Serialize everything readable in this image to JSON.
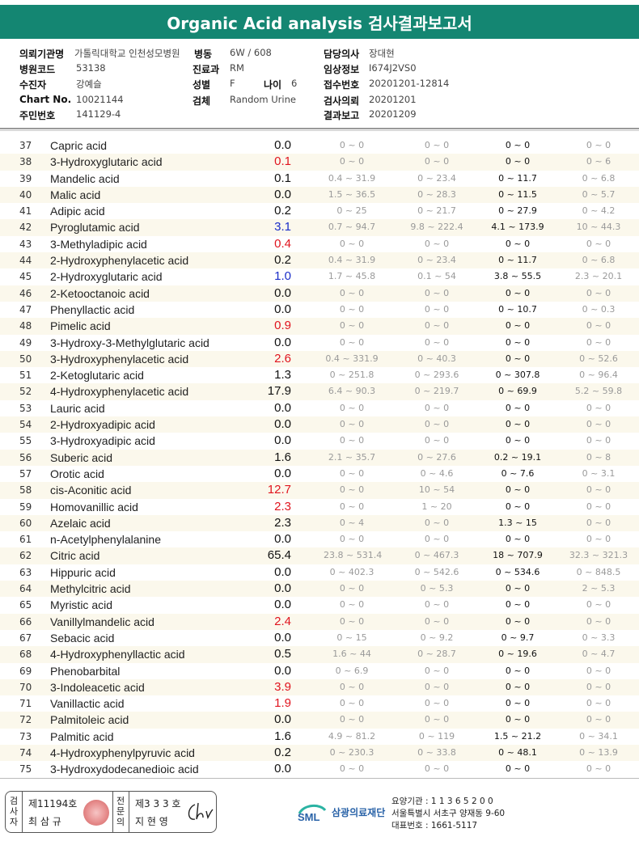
{
  "title": "Organic Acid analysis 검사결과보고서",
  "info": {
    "institution_label": "의뢰기관명",
    "institution": "가톨릭대학교 인천성모병원",
    "ward_label": "병동",
    "ward": "6W / 608",
    "doctor_label": "담당의사",
    "doctor": "장대현",
    "hospital_code_label": "병원코드",
    "hospital_code": "53138",
    "dept_label": "진료과",
    "dept": "RM",
    "clinical_label": "임상정보",
    "clinical": "I674J2VS0",
    "patient_label": "수진자",
    "patient": "강예슬",
    "sex_label": "성별",
    "sex": "F",
    "age_label": "나이",
    "age": "6",
    "receipt_label": "접수번호",
    "receipt": "20201201-12814",
    "chart_label": "Chart No.",
    "chart": "10021144",
    "specimen_label": "검체",
    "specimen": "Random Urine",
    "request_label": "검사의뢰",
    "request": "20201201",
    "resident_label": "주민번호",
    "resident": "141129-4",
    "report_label": "결과보고",
    "report": "20201209"
  },
  "rows": [
    {
      "no": "37",
      "name": "Capric acid",
      "val": "0.0",
      "color": "",
      "r1": "0 ~ 0",
      "r2": "0 ~ 0",
      "r3": "0 ~ 0",
      "r4": "0 ~ 0"
    },
    {
      "no": "38",
      "name": "3-Hydroxyglutaric acid",
      "val": "0.1",
      "color": "red",
      "r1": "0 ~ 0",
      "r2": "0 ~ 0",
      "r3": "0 ~ 0",
      "r4": "0 ~ 6"
    },
    {
      "no": "39",
      "name": "Mandelic acid",
      "val": "0.1",
      "color": "",
      "r1": "0.4 ~ 31.9",
      "r2": "0 ~ 23.4",
      "r3": "0 ~ 11.7",
      "r4": "0 ~ 6.8"
    },
    {
      "no": "40",
      "name": "Malic acid",
      "val": "0.0",
      "color": "",
      "r1": "1.5 ~ 36.5",
      "r2": "0 ~ 28.3",
      "r3": "0 ~ 11.5",
      "r4": "0 ~ 5.7"
    },
    {
      "no": "41",
      "name": "Adipic acid",
      "val": "0.2",
      "color": "",
      "r1": "0 ~ 25",
      "r2": "0 ~ 21.7",
      "r3": "0 ~ 27.9",
      "r4": "0 ~ 4.2"
    },
    {
      "no": "42",
      "name": "Pyroglutamic acid",
      "val": "3.1",
      "color": "blue",
      "r1": "0.7 ~ 94.7",
      "r2": "9.8 ~ 222.4",
      "r3": "4.1 ~ 173.9",
      "r4": "10 ~ 44.3"
    },
    {
      "no": "43",
      "name": "3-Methyladipic acid",
      "val": "0.4",
      "color": "red",
      "r1": "0 ~ 0",
      "r2": "0 ~ 0",
      "r3": "0 ~ 0",
      "r4": "0 ~ 0"
    },
    {
      "no": "44",
      "name": "2-Hydroxyphenylacetic acid",
      "val": "0.2",
      "color": "",
      "r1": "0.4 ~ 31.9",
      "r2": "0 ~ 23.4",
      "r3": "0 ~ 11.7",
      "r4": "0 ~ 6.8"
    },
    {
      "no": "45",
      "name": "2-Hydroxyglutaric acid",
      "val": "1.0",
      "color": "blue",
      "r1": "1.7 ~ 45.8",
      "r2": "0.1 ~ 54",
      "r3": "3.8 ~ 55.5",
      "r4": "2.3 ~ 20.1"
    },
    {
      "no": "46",
      "name": "2-Ketooctanoic acid",
      "val": "0.0",
      "color": "",
      "r1": "0 ~ 0",
      "r2": "0 ~ 0",
      "r3": "0 ~ 0",
      "r4": "0 ~ 0"
    },
    {
      "no": "47",
      "name": "Phenyllactic acid",
      "val": "0.0",
      "color": "",
      "r1": "0 ~ 0",
      "r2": "0 ~ 0",
      "r3": "0 ~ 10.7",
      "r4": "0 ~ 0.3"
    },
    {
      "no": "48",
      "name": "Pimelic acid",
      "val": "0.9",
      "color": "red",
      "r1": "0 ~ 0",
      "r2": "0 ~ 0",
      "r3": "0 ~ 0",
      "r4": "0 ~ 0"
    },
    {
      "no": "49",
      "name": "3-Hydroxy-3-Methylglutaric acid",
      "val": "0.0",
      "color": "",
      "r1": "0 ~ 0",
      "r2": "0 ~ 0",
      "r3": "0 ~ 0",
      "r4": "0 ~ 0"
    },
    {
      "no": "50",
      "name": "3-Hydroxyphenylacetic acid",
      "val": "2.6",
      "color": "red",
      "r1": "0.4 ~ 331.9",
      "r2": "0 ~ 40.3",
      "r3": "0 ~ 0",
      "r4": "0 ~ 52.6"
    },
    {
      "no": "51",
      "name": "2-Ketoglutaric acid",
      "val": "1.3",
      "color": "",
      "r1": "0 ~ 251.8",
      "r2": "0 ~ 293.6",
      "r3": "0 ~ 307.8",
      "r4": "0 ~ 96.4"
    },
    {
      "no": "52",
      "name": "4-Hydroxyphenylacetic acid",
      "val": "17.9",
      "color": "",
      "r1": "6.4 ~ 90.3",
      "r2": "0 ~ 219.7",
      "r3": "0 ~ 69.9",
      "r4": "5.2 ~ 59.8"
    },
    {
      "no": "53",
      "name": "Lauric acid",
      "val": "0.0",
      "color": "",
      "r1": "0 ~ 0",
      "r2": "0 ~ 0",
      "r3": "0 ~ 0",
      "r4": "0 ~ 0"
    },
    {
      "no": "54",
      "name": "2-Hydroxyadipic acid",
      "val": "0.0",
      "color": "",
      "r1": "0 ~ 0",
      "r2": "0 ~ 0",
      "r3": "0 ~ 0",
      "r4": "0 ~ 0"
    },
    {
      "no": "55",
      "name": "3-Hydroxyadipic acid",
      "val": "0.0",
      "color": "",
      "r1": "0 ~ 0",
      "r2": "0 ~ 0",
      "r3": "0 ~ 0",
      "r4": "0 ~ 0"
    },
    {
      "no": "56",
      "name": "Suberic acid",
      "val": "1.6",
      "color": "",
      "r1": "2.1 ~ 35.7",
      "r2": "0 ~ 27.6",
      "r3": "0.2 ~ 19.1",
      "r4": "0 ~ 8"
    },
    {
      "no": "57",
      "name": "Orotic acid",
      "val": "0.0",
      "color": "",
      "r1": "0 ~ 0",
      "r2": "0 ~ 4.6",
      "r3": "0 ~ 7.6",
      "r4": "0 ~ 3.1"
    },
    {
      "no": "58",
      "name": "cis-Aconitic acid",
      "val": "12.7",
      "color": "red",
      "r1": "0 ~ 0",
      "r2": "10 ~ 54",
      "r3": "0 ~ 0",
      "r4": "0 ~ 0"
    },
    {
      "no": "59",
      "name": "Homovanillic acid",
      "val": "2.3",
      "color": "red",
      "r1": "0 ~ 0",
      "r2": "1 ~ 20",
      "r3": "0 ~ 0",
      "r4": "0 ~ 0"
    },
    {
      "no": "60",
      "name": "Azelaic acid",
      "val": "2.3",
      "color": "",
      "r1": "0 ~ 4",
      "r2": "0 ~ 0",
      "r3": "1.3 ~ 15",
      "r4": "0 ~ 0"
    },
    {
      "no": "61",
      "name": "n-Acetylphenylalanine",
      "val": "0.0",
      "color": "",
      "r1": "0 ~ 0",
      "r2": "0 ~ 0",
      "r3": "0 ~ 0",
      "r4": "0 ~ 0"
    },
    {
      "no": "62",
      "name": "Citric acid",
      "val": "65.4",
      "color": "",
      "r1": "23.8 ~ 531.4",
      "r2": "0 ~ 467.3",
      "r3": "18 ~ 707.9",
      "r4": "32.3 ~ 321.3"
    },
    {
      "no": "63",
      "name": "Hippuric acid",
      "val": "0.0",
      "color": "",
      "r1": "0 ~ 402.3",
      "r2": "0 ~ 542.6",
      "r3": "0 ~ 534.6",
      "r4": "0 ~ 848.5"
    },
    {
      "no": "64",
      "name": "Methylcitric acid",
      "val": "0.0",
      "color": "",
      "r1": "0 ~ 0",
      "r2": "0 ~ 5.3",
      "r3": "0 ~ 0",
      "r4": "2 ~ 5.3"
    },
    {
      "no": "65",
      "name": "Myristic acid",
      "val": "0.0",
      "color": "",
      "r1": "0 ~ 0",
      "r2": "0 ~ 0",
      "r3": "0 ~ 0",
      "r4": "0 ~ 0"
    },
    {
      "no": "66",
      "name": "Vanillylmandelic acid",
      "val": "2.4",
      "color": "red",
      "r1": "0 ~ 0",
      "r2": "0 ~ 0",
      "r3": "0 ~ 0",
      "r4": "0 ~ 0"
    },
    {
      "no": "67",
      "name": "Sebacic acid",
      "val": "0.0",
      "color": "",
      "r1": "0 ~ 15",
      "r2": "0 ~ 9.2",
      "r3": "0 ~ 9.7",
      "r4": "0 ~ 3.3"
    },
    {
      "no": "68",
      "name": "4-Hydroxyphenyllactic acid",
      "val": "0.5",
      "color": "",
      "r1": "1.6 ~ 44",
      "r2": "0 ~ 28.7",
      "r3": "0 ~ 19.6",
      "r4": "0 ~ 4.7"
    },
    {
      "no": "69",
      "name": "Phenobarbital",
      "val": "0.0",
      "color": "",
      "r1": "0 ~ 6.9",
      "r2": "0 ~ 0",
      "r3": "0 ~ 0",
      "r4": "0 ~ 0"
    },
    {
      "no": "70",
      "name": "3-Indoleacetic acid",
      "val": "3.9",
      "color": "red",
      "r1": "0 ~ 0",
      "r2": "0 ~ 0",
      "r3": "0 ~ 0",
      "r4": "0 ~ 0"
    },
    {
      "no": "71",
      "name": "Vanillactic acid",
      "val": "1.9",
      "color": "red",
      "r1": "0 ~ 0",
      "r2": "0 ~ 0",
      "r3": "0 ~ 0",
      "r4": "0 ~ 0"
    },
    {
      "no": "72",
      "name": "Palmitoleic acid",
      "val": "0.0",
      "color": "",
      "r1": "0 ~ 0",
      "r2": "0 ~ 0",
      "r3": "0 ~ 0",
      "r4": "0 ~ 0"
    },
    {
      "no": "73",
      "name": "Palmitic acid",
      "val": "1.6",
      "color": "",
      "r1": "4.9 ~ 81.2",
      "r2": "0 ~ 119",
      "r3": "1.5 ~ 21.2",
      "r4": "0 ~ 34.1"
    },
    {
      "no": "74",
      "name": "4-Hydroxyphenylpyruvic acid",
      "val": "0.2",
      "color": "",
      "r1": "0 ~ 230.3",
      "r2": "0 ~ 33.8",
      "r3": "0 ~ 48.1",
      "r4": "0 ~ 13.9"
    },
    {
      "no": "75",
      "name": "3-Hydroxydodecanedioic acid",
      "val": "0.0",
      "color": "",
      "r1": "0 ~ 0",
      "r2": "0 ~ 0",
      "r3": "0 ~ 0",
      "r4": "0 ~ 0"
    }
  ],
  "footer": {
    "tester_label": "검사자",
    "tester_no": "제11194호",
    "tester_name": "최 삼 규",
    "expert_label": "전문의",
    "expert_no": "제3 3 3 호",
    "expert_name": "지 현 영",
    "org_logo": "SML",
    "org_name": "삼광의료재단",
    "addr1": "요양기관 : 1 1 3 6 5 2 0 0",
    "addr2": "서울특별시 서초구 양재동 9-60",
    "addr3": "대표번호 : 1661-5117"
  }
}
